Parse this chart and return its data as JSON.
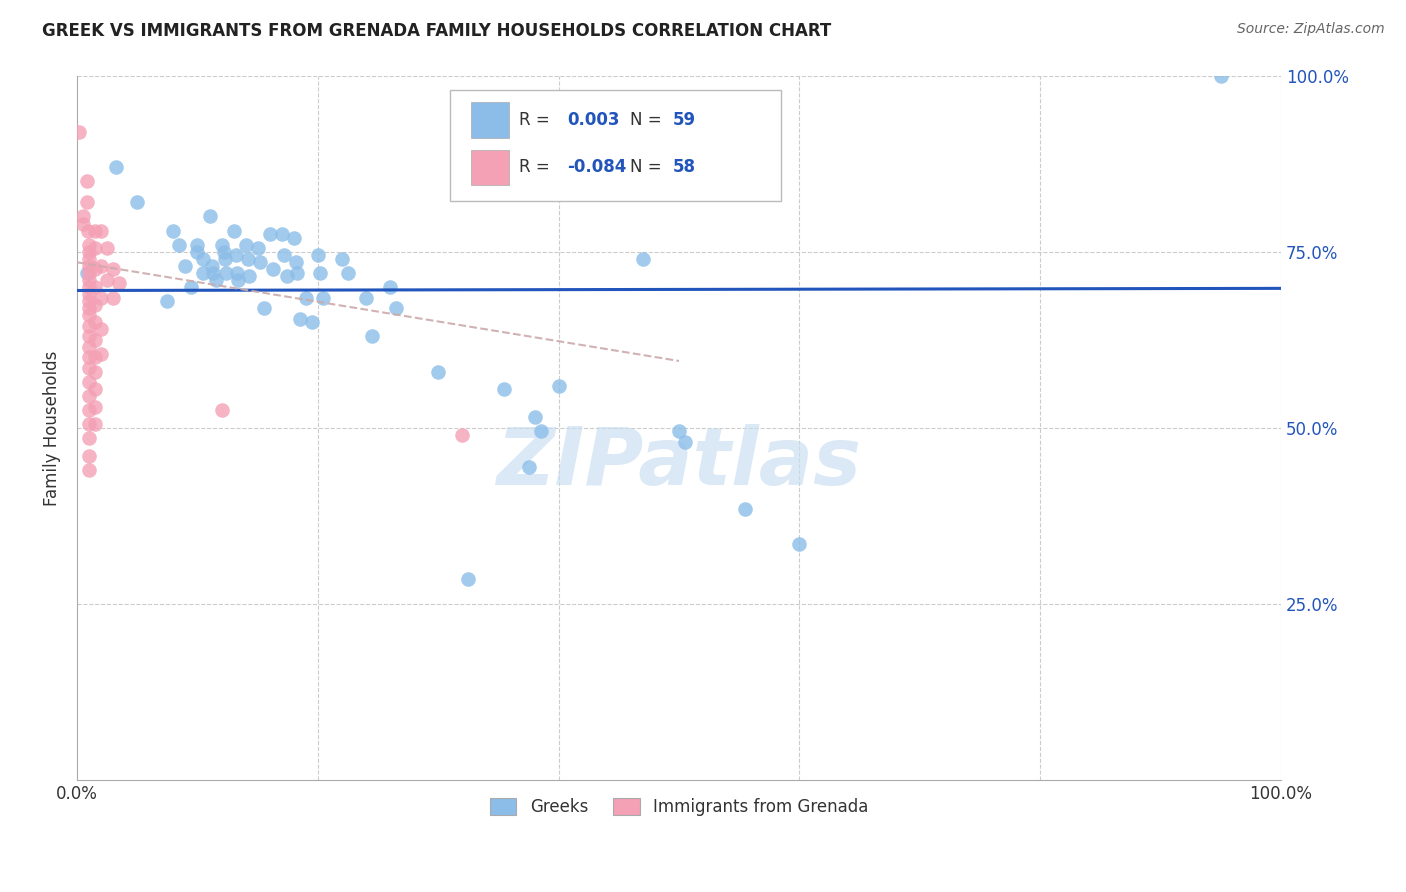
{
  "title": "GREEK VS IMMIGRANTS FROM GRENADA FAMILY HOUSEHOLDS CORRELATION CHART",
  "source": "Source: ZipAtlas.com",
  "ylabel": "Family Households",
  "xlim": [
    0.0,
    1.0
  ],
  "ylim": [
    0.0,
    1.0
  ],
  "color_blue": "#8BBDE8",
  "color_pink": "#F4A0B5",
  "color_trendline_blue": "#2255BB",
  "color_trendline_pink": "#CCAAAA",
  "watermark": "ZIPatlas",
  "blue_points": [
    [
      0.008,
      0.72
    ],
    [
      0.032,
      0.87
    ],
    [
      0.05,
      0.82
    ],
    [
      0.075,
      0.68
    ],
    [
      0.08,
      0.78
    ],
    [
      0.085,
      0.76
    ],
    [
      0.09,
      0.73
    ],
    [
      0.095,
      0.7
    ],
    [
      0.1,
      0.76
    ],
    [
      0.1,
      0.75
    ],
    [
      0.105,
      0.74
    ],
    [
      0.105,
      0.72
    ],
    [
      0.11,
      0.8
    ],
    [
      0.112,
      0.73
    ],
    [
      0.113,
      0.72
    ],
    [
      0.115,
      0.71
    ],
    [
      0.12,
      0.76
    ],
    [
      0.122,
      0.75
    ],
    [
      0.123,
      0.74
    ],
    [
      0.124,
      0.72
    ],
    [
      0.13,
      0.78
    ],
    [
      0.132,
      0.745
    ],
    [
      0.133,
      0.72
    ],
    [
      0.134,
      0.71
    ],
    [
      0.14,
      0.76
    ],
    [
      0.142,
      0.74
    ],
    [
      0.143,
      0.715
    ],
    [
      0.15,
      0.755
    ],
    [
      0.152,
      0.735
    ],
    [
      0.155,
      0.67
    ],
    [
      0.16,
      0.775
    ],
    [
      0.163,
      0.725
    ],
    [
      0.17,
      0.775
    ],
    [
      0.172,
      0.745
    ],
    [
      0.174,
      0.715
    ],
    [
      0.18,
      0.77
    ],
    [
      0.182,
      0.735
    ],
    [
      0.183,
      0.72
    ],
    [
      0.185,
      0.655
    ],
    [
      0.19,
      0.685
    ],
    [
      0.195,
      0.65
    ],
    [
      0.2,
      0.745
    ],
    [
      0.202,
      0.72
    ],
    [
      0.204,
      0.685
    ],
    [
      0.22,
      0.74
    ],
    [
      0.225,
      0.72
    ],
    [
      0.24,
      0.685
    ],
    [
      0.245,
      0.63
    ],
    [
      0.26,
      0.7
    ],
    [
      0.265,
      0.67
    ],
    [
      0.3,
      0.58
    ],
    [
      0.325,
      0.285
    ],
    [
      0.355,
      0.555
    ],
    [
      0.375,
      0.445
    ],
    [
      0.38,
      0.515
    ],
    [
      0.385,
      0.495
    ],
    [
      0.4,
      0.56
    ],
    [
      0.47,
      0.74
    ],
    [
      0.5,
      0.495
    ],
    [
      0.505,
      0.48
    ],
    [
      0.555,
      0.385
    ],
    [
      0.6,
      0.335
    ],
    [
      0.95,
      1.0
    ]
  ],
  "pink_points": [
    [
      0.002,
      0.92
    ],
    [
      0.005,
      0.8
    ],
    [
      0.005,
      0.79
    ],
    [
      0.008,
      0.85
    ],
    [
      0.008,
      0.82
    ],
    [
      0.009,
      0.78
    ],
    [
      0.01,
      0.76
    ],
    [
      0.01,
      0.75
    ],
    [
      0.01,
      0.74
    ],
    [
      0.01,
      0.73
    ],
    [
      0.01,
      0.72
    ],
    [
      0.01,
      0.71
    ],
    [
      0.01,
      0.7
    ],
    [
      0.01,
      0.69
    ],
    [
      0.01,
      0.68
    ],
    [
      0.01,
      0.67
    ],
    [
      0.01,
      0.66
    ],
    [
      0.01,
      0.645
    ],
    [
      0.01,
      0.63
    ],
    [
      0.01,
      0.615
    ],
    [
      0.01,
      0.6
    ],
    [
      0.01,
      0.585
    ],
    [
      0.01,
      0.565
    ],
    [
      0.01,
      0.545
    ],
    [
      0.01,
      0.525
    ],
    [
      0.01,
      0.505
    ],
    [
      0.01,
      0.485
    ],
    [
      0.01,
      0.46
    ],
    [
      0.01,
      0.44
    ],
    [
      0.015,
      0.78
    ],
    [
      0.015,
      0.755
    ],
    [
      0.015,
      0.725
    ],
    [
      0.015,
      0.7
    ],
    [
      0.015,
      0.675
    ],
    [
      0.015,
      0.65
    ],
    [
      0.015,
      0.625
    ],
    [
      0.015,
      0.6
    ],
    [
      0.015,
      0.58
    ],
    [
      0.015,
      0.555
    ],
    [
      0.015,
      0.53
    ],
    [
      0.015,
      0.505
    ],
    [
      0.02,
      0.78
    ],
    [
      0.02,
      0.73
    ],
    [
      0.02,
      0.685
    ],
    [
      0.02,
      0.64
    ],
    [
      0.02,
      0.605
    ],
    [
      0.025,
      0.755
    ],
    [
      0.025,
      0.71
    ],
    [
      0.03,
      0.725
    ],
    [
      0.03,
      0.685
    ],
    [
      0.035,
      0.705
    ],
    [
      0.12,
      0.525
    ],
    [
      0.32,
      0.49
    ]
  ],
  "blue_trend_x": [
    0.0,
    1.0
  ],
  "blue_trend_y": [
    0.695,
    0.698
  ],
  "pink_trend_x": [
    0.0,
    0.5
  ],
  "pink_trend_y": [
    0.735,
    0.595
  ]
}
